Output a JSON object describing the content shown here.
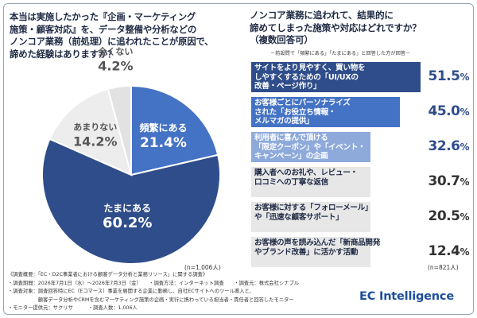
{
  "left": {
    "title_lines": [
      "本当は実施したかった『企画・マーケティング",
      "施策・顧客対応』を、データ整備や分析などの",
      "ノンコア業務（前処理）に追われたことが原因で、",
      "諦めた経験はありますか？"
    ],
    "n_note": "(n=1,006人)"
  },
  "right": {
    "title_lines": [
      "ノンコア業務に追われて、結果的に",
      "諦めてしまった施策や対応はどれですか？",
      "（複数回答可）"
    ],
    "note": "－前設問で「頻繁にある」「たまにある」と回答した方が回答－",
    "n_note": "(n=821人)"
  },
  "chart_data": [
    {
      "type": "pie",
      "categories": [
        "頻繁にある",
        "たまにある",
        "あまりない",
        "全くない"
      ],
      "values": [
        21.4,
        60.2,
        14.2,
        4.2
      ],
      "value_labels": [
        "21.4%",
        "60.2%",
        "14.2%",
        "4.2%"
      ],
      "colors": [
        "#4472c4",
        "#2f4d8a",
        "#ededed",
        "#e2e2e2"
      ]
    },
    {
      "type": "bar",
      "categories": [
        "サイトをより見やすく、買い物を\nしやすくするための「UI/UXの\n改善・ページ作り」",
        "お客様ごとにパーソナライズ\nされた「お役立ち情報・\nメルマガの提供」",
        "利用者に喜んで頂ける\n「限定クーポン」や「イベント・\nキャンペーン」の企画",
        "購入者へのお礼や、レビュー・\n口コミへの丁寧な返信",
        "お客様に対する「フォローメール」\nや「迅速な顧客サポート」",
        "お客様の声を読み込んだ「新商品開発\nやブランド改善」に活かす活動"
      ],
      "values": [
        51.5,
        45.0,
        32.6,
        30.7,
        20.5,
        12.4
      ],
      "value_labels": [
        "51.5",
        "45.0",
        "32.6",
        "30.7",
        "20.5",
        "12.4"
      ],
      "unit": "%",
      "colors": [
        "#2f4d8a",
        "#4472c4",
        "#8eaadb",
        "#e7e7e7",
        "#e7e7e7",
        "#e7e7e7"
      ],
      "label_colors": [
        "#ffffff",
        "#ffffff",
        "#ffffff",
        "#1f2a44",
        "#1f2a44",
        "#1f2a44"
      ]
    }
  ],
  "footer_lines": [
    "《調査概要：「EC・D2C事業者における顧客データ分析と業務リソース」に関する調査》",
    "・調査期間：2026年7月1日（水）～2026年7月3日（金）　　・調査方法：インターネット調査　　・調査元：株式会社シナブル",
    "・調査対象：調査回答時にEC（Eコマース）事業を展開する企業に勤務し、自社ECサイトへのツール導入と、",
    "　　　　　　顧客データ分析やCRMを含むマーケティング施策の企画・実行に携わっている担当者・責任者と回答したモニター",
    "・モニター提供元：サクリサ　　　・調査人数：1,006人"
  ],
  "logo_text": "EC Intelligence"
}
